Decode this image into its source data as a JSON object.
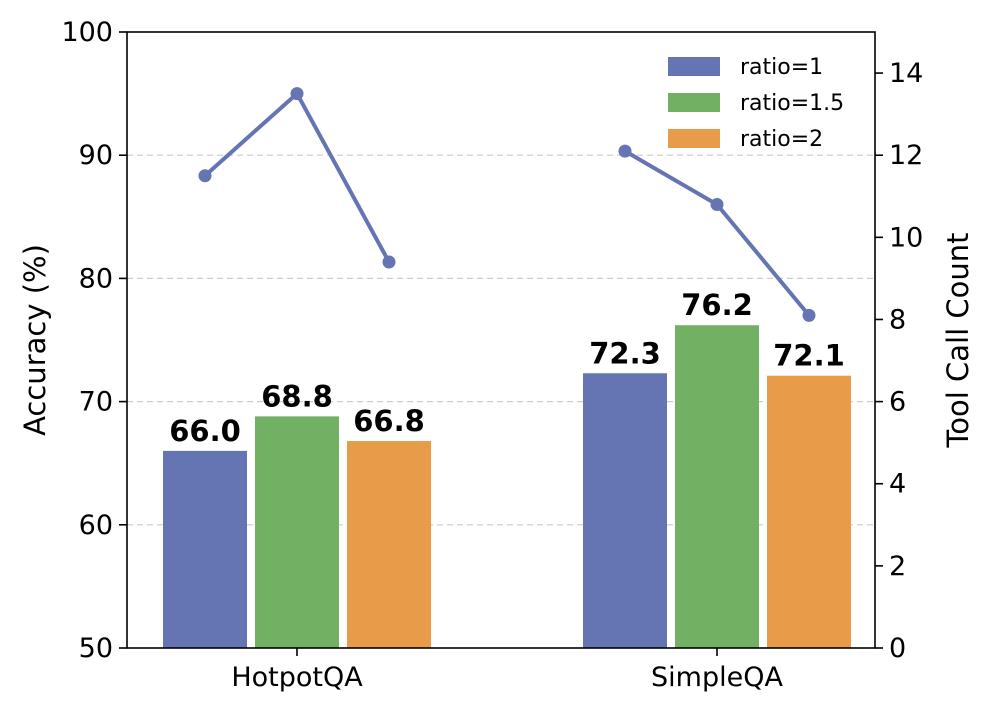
{
  "chart_data": {
    "type": "bar",
    "categories": [
      "HotpotQA",
      "SimpleQA"
    ],
    "series": [
      {
        "name": "ratio=1",
        "values": [
          66.0,
          72.3
        ],
        "labels": [
          "66.0",
          "72.3"
        ],
        "color": "#6574b3"
      },
      {
        "name": "ratio=1.5",
        "values": [
          68.8,
          76.2
        ],
        "labels": [
          "68.8",
          "76.2"
        ],
        "color": "#72b064"
      },
      {
        "name": "ratio=2",
        "values": [
          66.8,
          72.1
        ],
        "labels": [
          "66.8",
          "72.1"
        ],
        "color": "#e89c4a"
      }
    ],
    "line_series": {
      "name": "Tool Call Count",
      "axis": "right",
      "color": "#6574b3",
      "values": [
        [
          11.5,
          13.5,
          9.4
        ],
        [
          12.1,
          10.8,
          8.1
        ]
      ]
    },
    "ylabel": "Accuracy (%)",
    "ylim": [
      50,
      100
    ],
    "yticks": [
      "50",
      "60",
      "70",
      "80",
      "90",
      "100"
    ],
    "y2label": "Tool Call Count",
    "y2lim": [
      0,
      15
    ],
    "y2ticks": [
      "0",
      "2",
      "4",
      "6",
      "8",
      "10",
      "12",
      "14"
    ],
    "grid": true,
    "legend_position": "top-right"
  }
}
